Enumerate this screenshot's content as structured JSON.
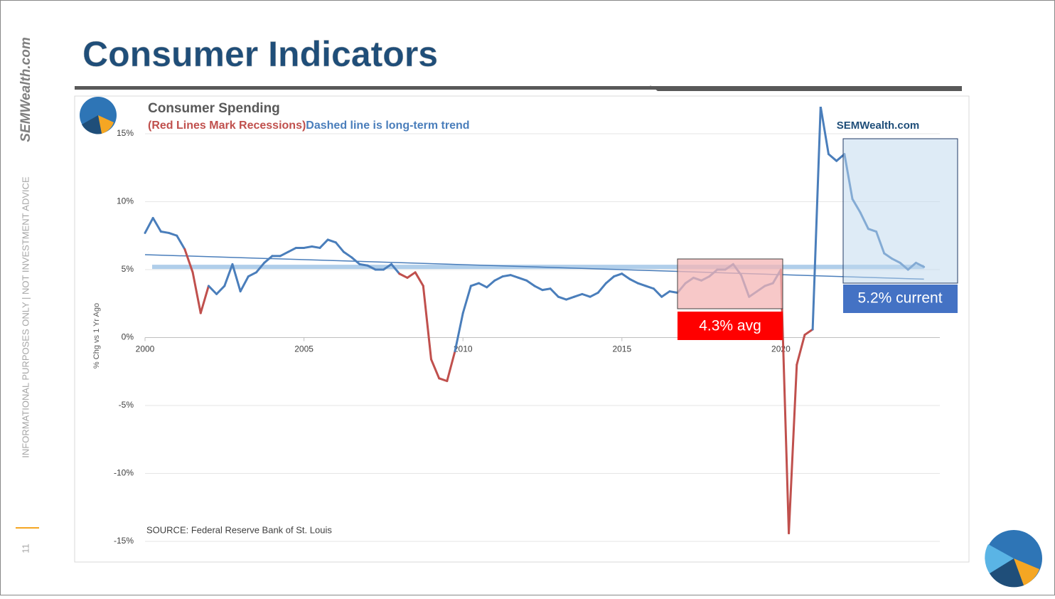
{
  "slide": {
    "title": "Consumer Indicators",
    "side_brand": "SEMWealth.com",
    "disclaimer": "INFORMATIONAL PURPOSES ONLY | NOT INVESTMENT ADVICE",
    "page_number": "11"
  },
  "chart_data": {
    "type": "line",
    "title": "Consumer Spending",
    "subtitle_red": "(Red Lines Mark Recessions)",
    "subtitle_blue": "Dashed line is long-term trend",
    "watermark": "SEMWealth.com",
    "y_label": "% Chg vs 1 Yr Ago",
    "source": "SOURCE:  Federal Reserve Bank of St. Louis",
    "annotations": {
      "avg": "4.3% avg",
      "current": "5.2% current"
    },
    "x": [
      2000,
      2000.25,
      2000.5,
      2000.75,
      2001,
      2001.25,
      2001.5,
      2001.75,
      2002,
      2002.25,
      2002.5,
      2002.75,
      2003,
      2003.25,
      2003.5,
      2003.75,
      2004,
      2004.25,
      2004.5,
      2004.75,
      2005,
      2005.25,
      2005.5,
      2005.75,
      2006,
      2006.25,
      2006.5,
      2006.75,
      2007,
      2007.25,
      2007.5,
      2007.75,
      2008,
      2008.25,
      2008.5,
      2008.75,
      2009,
      2009.25,
      2009.5,
      2009.75,
      2010,
      2010.25,
      2010.5,
      2010.75,
      2011,
      2011.25,
      2011.5,
      2011.75,
      2012,
      2012.25,
      2012.5,
      2012.75,
      2013,
      2013.25,
      2013.5,
      2013.75,
      2014,
      2014.25,
      2014.5,
      2014.75,
      2015,
      2015.25,
      2015.5,
      2015.75,
      2016,
      2016.25,
      2016.5,
      2016.75,
      2017,
      2017.25,
      2017.5,
      2017.75,
      2018,
      2018.25,
      2018.5,
      2018.75,
      2019,
      2019.25,
      2019.5,
      2019.75,
      2020,
      2020.25,
      2020.5,
      2020.75,
      2021,
      2021.25,
      2021.5,
      2021.75,
      2022,
      2022.25,
      2022.5,
      2022.75,
      2023,
      2023.25,
      2023.5,
      2023.75,
      2024,
      2024.25,
      2024.5
    ],
    "series": [
      {
        "name": "Consumer Spending",
        "color": "#4a7ebb",
        "recession_color": "#c0504d",
        "values": [
          7.7,
          8.8,
          7.8,
          7.7,
          7.5,
          6.5,
          4.8,
          1.8,
          3.8,
          3.2,
          3.8,
          5.4,
          3.4,
          4.5,
          4.8,
          5.5,
          6.0,
          6.0,
          6.3,
          6.6,
          6.6,
          6.7,
          6.6,
          7.2,
          7.0,
          6.3,
          5.9,
          5.4,
          5.3,
          5.0,
          5.0,
          5.4,
          4.7,
          4.4,
          4.8,
          3.8,
          -1.6,
          -3.0,
          -3.2,
          -1.0,
          1.8,
          3.8,
          4.0,
          3.7,
          4.2,
          4.5,
          4.6,
          4.4,
          4.2,
          3.8,
          3.5,
          3.6,
          3.0,
          2.8,
          3.0,
          3.2,
          3.0,
          3.3,
          4.0,
          4.5,
          4.7,
          4.3,
          4.0,
          3.8,
          3.6,
          3.0,
          3.4,
          3.3,
          4.0,
          4.4,
          4.2,
          4.5,
          5.0,
          5.0,
          5.4,
          4.6,
          3.0,
          3.4,
          3.8,
          4.0,
          5.0,
          -14.4,
          -2.0,
          0.2,
          0.6,
          17,
          13.5,
          13.0,
          13.5,
          10.2,
          9.2,
          8.0,
          7.8,
          6.2,
          5.8,
          5.5,
          5.0,
          5.5,
          5.2
        ]
      },
      {
        "name": "Long-term trend",
        "color": "#4a7ebb",
        "x": [
          2000,
          2024.5
        ],
        "values": [
          6.1,
          4.3
        ]
      }
    ],
    "recessions": [
      [
        2001.25,
        2001.9
      ],
      [
        2007.9,
        2009.65
      ],
      [
        2020.1,
        2021.05
      ]
    ],
    "reference_line": 5.2,
    "xlim": [
      2000,
      2025
    ],
    "xticks": [
      2000,
      2005,
      2010,
      2015,
      2020
    ],
    "ylim": [
      -15,
      15
    ],
    "yticks": [
      {
        "value": -15,
        "label": "-15%"
      },
      {
        "value": -10,
        "label": "-10%"
      },
      {
        "value": -5,
        "label": "-5%"
      },
      {
        "value": 0,
        "label": "0%"
      },
      {
        "value": 5,
        "label": "5%"
      },
      {
        "value": 10,
        "label": "10%"
      },
      {
        "value": 15,
        "label": "15%"
      }
    ],
    "grid": true
  }
}
